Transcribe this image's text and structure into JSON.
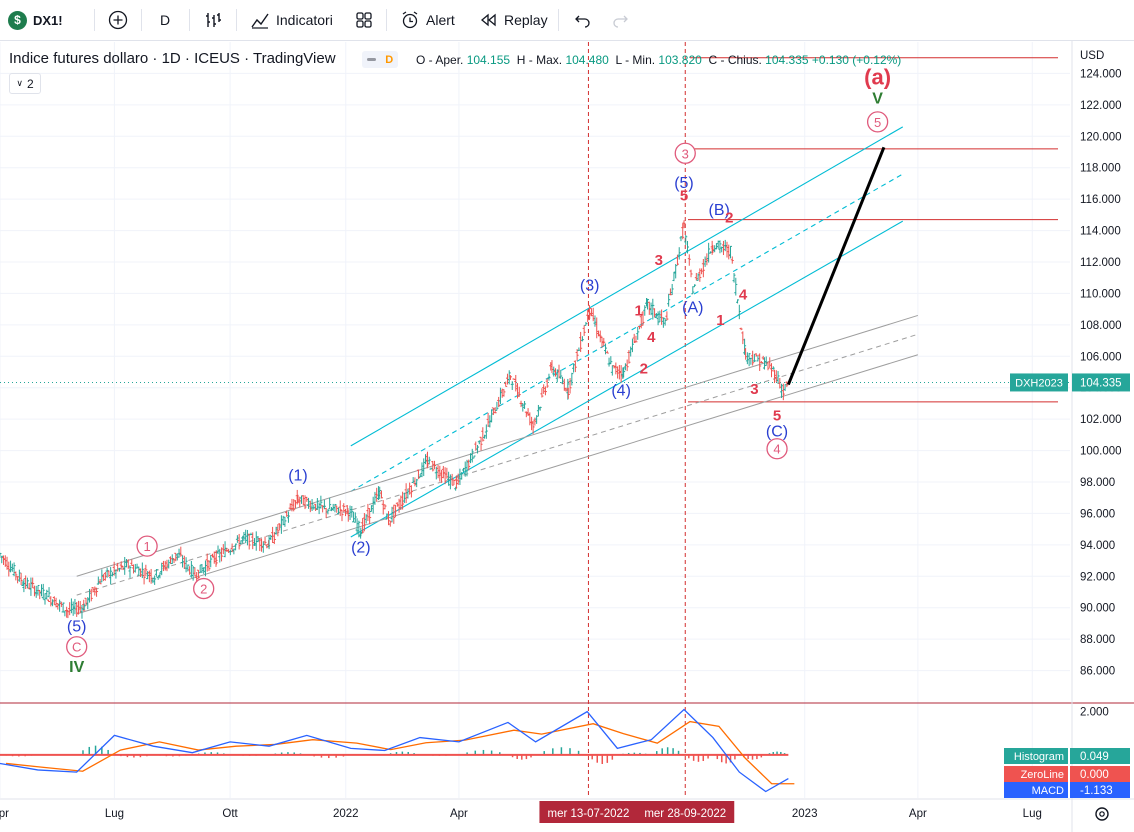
{
  "toolbar": {
    "symbol": "DX1!",
    "interval": "D",
    "indicators_label": "Indicatori",
    "alert_label": "Alert",
    "replay_label": "Replay"
  },
  "legend": {
    "title": "Indice futures dollaro · 1D · ICEUS · TradingView",
    "badge": "D",
    "o_label": "O - Aper.",
    "o": "104.155",
    "h_label": "H - Max.",
    "h": "104.480",
    "l_label": "L - Min.",
    "l": "103.820",
    "c_label": "C - Chius.",
    "c": "104.335",
    "change": "+0.130 (+0.12%)",
    "collapse_count": "2"
  },
  "colors": {
    "up": "#26a69a",
    "down": "#ef5350",
    "channel": "#00bcd4",
    "grey_channel": "#9e9e9e",
    "wave_red": "#e03a4e",
    "wave_blue": "#2a3fd1",
    "wave_pink": "#e05a7c",
    "wave_green": "#2e7d32",
    "macd": "#2962ff",
    "signal": "#ff6d00"
  },
  "chart_data": {
    "type": "line",
    "title": "Indice futures dollaro · 1D · ICEUS",
    "currency": "USD",
    "ylim": [
      84.0,
      126.0
    ],
    "y_ticks": [
      "124.000",
      "122.000",
      "120.000",
      "118.000",
      "116.000",
      "114.000",
      "112.000",
      "110.000",
      "108.000",
      "106.000",
      "104.000",
      "102.000",
      "100.000",
      "98.000",
      "96.000",
      "94.000",
      "92.000",
      "90.000",
      "88.000",
      "86.000"
    ],
    "x_ticks": [
      "Apr",
      "Lug",
      "Ott",
      "2022",
      "Apr",
      "2023",
      "Apr",
      "Lug"
    ],
    "x_range": [
      "2021-04-01",
      "2023-07-31"
    ],
    "series": [
      {
        "name": "DXH2023",
        "points": [
          [
            "2021-04-01",
            93.4
          ],
          [
            "2021-04-20",
            91.6
          ],
          [
            "2021-05-10",
            90.7
          ],
          [
            "2021-05-25",
            89.8
          ],
          [
            "2021-06-07",
            90.1
          ],
          [
            "2021-06-21",
            91.9
          ],
          [
            "2021-07-12",
            92.7
          ],
          [
            "2021-08-02",
            92.0
          ],
          [
            "2021-08-20",
            93.4
          ],
          [
            "2021-09-03",
            92.1
          ],
          [
            "2021-09-20",
            93.2
          ],
          [
            "2021-10-12",
            94.4
          ],
          [
            "2021-11-01",
            94.1
          ],
          [
            "2021-11-24",
            96.9
          ],
          [
            "2021-12-15",
            96.3
          ],
          [
            "2022-01-03",
            96.2
          ],
          [
            "2022-01-13",
            94.9
          ],
          [
            "2022-01-28",
            97.4
          ],
          [
            "2022-02-04",
            95.5
          ],
          [
            "2022-03-07",
            99.3
          ],
          [
            "2022-03-30",
            97.8
          ],
          [
            "2022-04-20",
            100.9
          ],
          [
            "2022-05-12",
            104.8
          ],
          [
            "2022-05-30",
            101.6
          ],
          [
            "2022-06-14",
            105.3
          ],
          [
            "2022-06-27",
            103.9
          ],
          [
            "2022-07-14",
            109.0
          ],
          [
            "2022-08-01",
            105.2
          ],
          [
            "2022-08-10",
            105.0
          ],
          [
            "2022-08-29",
            109.3
          ],
          [
            "2022-09-12",
            108.1
          ],
          [
            "2022-09-27",
            114.3
          ],
          [
            "2022-10-04",
            110.3
          ],
          [
            "2022-10-20",
            113.1
          ],
          [
            "2022-11-03",
            112.7
          ],
          [
            "2022-11-15",
            106.1
          ],
          [
            "2022-11-30",
            105.6
          ],
          [
            "2022-12-08",
            105.0
          ],
          [
            "2022-12-15",
            103.8
          ],
          [
            "2022-12-19",
            104.3
          ]
        ]
      }
    ],
    "last_price": {
      "label": "DXH2023",
      "value": "104.335"
    },
    "projection": {
      "from": [
        "2022-12-19",
        104.2
      ],
      "to": [
        "2023-03-05",
        119.3
      ]
    },
    "horizontal_lines": [
      125.0,
      119.2,
      114.7,
      103.1
    ],
    "vertical_markers": [
      {
        "date": "2022-07-13",
        "label": "mer 13-07-2022"
      },
      {
        "date": "2022-09-28",
        "label": "mer 28-09-2022"
      }
    ],
    "wave_labels": [
      {
        "text": "(5)",
        "date": "2021-06-01",
        "y": 88.5,
        "style": "blue"
      },
      {
        "text": "C",
        "date": "2021-06-01",
        "y": 87.2,
        "style": "pink-circle"
      },
      {
        "text": "IV",
        "date": "2021-06-01",
        "y": 85.9,
        "style": "green"
      },
      {
        "text": "1",
        "date": "2021-07-27",
        "y": 93.6,
        "style": "pink-circle"
      },
      {
        "text": "2",
        "date": "2021-09-10",
        "y": 90.9,
        "style": "pink-circle"
      },
      {
        "text": "(1)",
        "date": "2021-11-24",
        "y": 98.1,
        "style": "blue"
      },
      {
        "text": "(2)",
        "date": "2022-01-13",
        "y": 93.5,
        "style": "blue"
      },
      {
        "text": "(3)",
        "date": "2022-07-14",
        "y": 110.2,
        "style": "blue"
      },
      {
        "text": "(4)",
        "date": "2022-08-08",
        "y": 103.5,
        "style": "blue"
      },
      {
        "text": "1",
        "date": "2022-08-22",
        "y": 108.6,
        "style": "red"
      },
      {
        "text": "2",
        "date": "2022-08-26",
        "y": 104.9,
        "style": "red"
      },
      {
        "text": "3",
        "date": "2022-09-07",
        "y": 111.8,
        "style": "red"
      },
      {
        "text": "4",
        "date": "2022-09-01",
        "y": 106.9,
        "style": "red"
      },
      {
        "text": "3",
        "date": "2022-09-28",
        "y": 118.6,
        "style": "pink-circle"
      },
      {
        "text": "(5)",
        "date": "2022-09-27",
        "y": 116.7,
        "style": "blue"
      },
      {
        "text": "5",
        "date": "2022-09-27",
        "y": 115.9,
        "style": "red"
      },
      {
        "text": "(B)",
        "date": "2022-10-25",
        "y": 115.0,
        "style": "blue"
      },
      {
        "text": "2",
        "date": "2022-11-02",
        "y": 114.5,
        "style": "red"
      },
      {
        "text": "(A)",
        "date": "2022-10-04",
        "y": 108.8,
        "style": "blue"
      },
      {
        "text": "4",
        "date": "2022-11-13",
        "y": 109.6,
        "style": "red"
      },
      {
        "text": "1",
        "date": "2022-10-26",
        "y": 108.0,
        "style": "red"
      },
      {
        "text": "3",
        "date": "2022-11-22",
        "y": 103.6,
        "style": "red"
      },
      {
        "text": "5",
        "date": "2022-12-10",
        "y": 101.9,
        "style": "red"
      },
      {
        "text": "(C)",
        "date": "2022-12-10",
        "y": 100.9,
        "style": "blue"
      },
      {
        "text": "4",
        "date": "2022-12-10",
        "y": 99.8,
        "style": "pink-circle"
      },
      {
        "text": "(a)",
        "date": "2023-02-28",
        "y": 123.3,
        "style": "red-bold"
      },
      {
        "text": "V",
        "date": "2023-02-28",
        "y": 122.1,
        "style": "green"
      },
      {
        "text": "5",
        "date": "2023-02-28",
        "y": 120.6,
        "style": "pink-circle"
      }
    ],
    "macd_panel": {
      "ylim": [
        -2.0,
        2.4
      ],
      "y_tick": "2.000",
      "histogram": {
        "label": "Histogram",
        "value": "0.049"
      },
      "zero_line": {
        "label": "ZeroLine",
        "value": "0.000"
      },
      "macd": {
        "label": "MACD",
        "value": "-1.133"
      },
      "macd_points": [
        [
          "2021-04-01",
          -0.4
        ],
        [
          "2021-05-01",
          -0.7
        ],
        [
          "2021-06-01",
          -0.8
        ],
        [
          "2021-07-01",
          0.9
        ],
        [
          "2021-08-01",
          0.4
        ],
        [
          "2021-09-01",
          0.1
        ],
        [
          "2021-10-01",
          0.6
        ],
        [
          "2021-11-01",
          0.4
        ],
        [
          "2021-12-01",
          0.9
        ],
        [
          "2022-01-05",
          0.3
        ],
        [
          "2022-02-01",
          0.2
        ],
        [
          "2022-03-01",
          0.8
        ],
        [
          "2022-04-01",
          0.6
        ],
        [
          "2022-05-10",
          1.5
        ],
        [
          "2022-06-01",
          0.6
        ],
        [
          "2022-07-12",
          2.0
        ],
        [
          "2022-08-05",
          0.3
        ],
        [
          "2022-09-01",
          0.7
        ],
        [
          "2022-09-27",
          2.1
        ],
        [
          "2022-10-20",
          0.8
        ],
        [
          "2022-11-10",
          -0.8
        ],
        [
          "2022-12-01",
          -1.7
        ],
        [
          "2022-12-19",
          -1.1
        ]
      ]
    }
  },
  "price_axis": {
    "currency": "USD"
  },
  "last_price_badge": {
    "label": "DXH2023",
    "value": "104.335"
  },
  "macd_badges": {
    "histogram_label": "Histogram",
    "histogram_value": "0.049",
    "zeroline_label": "ZeroLine",
    "zeroline_value": "0.000",
    "macd_label": "MACD",
    "macd_value": "-1.133"
  }
}
